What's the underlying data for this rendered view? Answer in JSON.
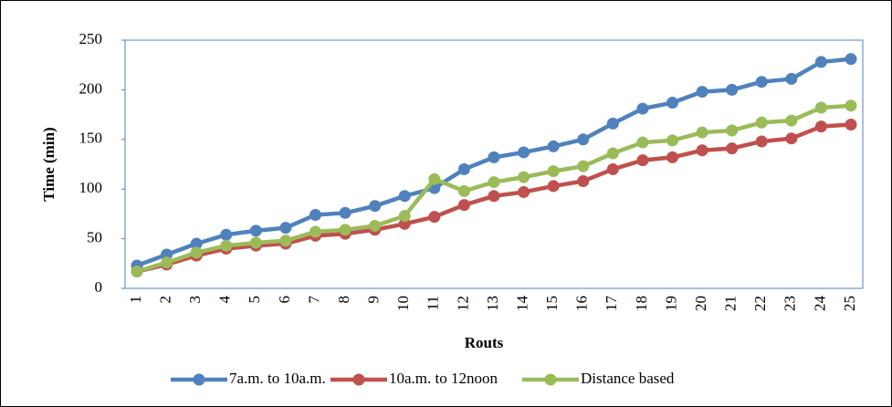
{
  "chart_data": {
    "type": "line",
    "x_label": "Routs",
    "y_label": "Time (min)",
    "categories": [
      "1",
      "2",
      "3",
      "4",
      "5",
      "6",
      "7",
      "8",
      "9",
      "10",
      "11",
      "12",
      "13",
      "14",
      "15",
      "16",
      "17",
      "18",
      "19",
      "20",
      "21",
      "22",
      "23",
      "24",
      "25"
    ],
    "series": [
      {
        "name": "7a.m. to 10a.m.",
        "color": "#4f81bd",
        "values": [
          23,
          34,
          45,
          54,
          58,
          61,
          74,
          76,
          83,
          93,
          101,
          120,
          132,
          137,
          143,
          150,
          166,
          181,
          187,
          198,
          200,
          208,
          211,
          228,
          231
        ]
      },
      {
        "name": "10a.m. to 12noon",
        "color": "#c0504d",
        "values": [
          17,
          24,
          33,
          40,
          43,
          45,
          53,
          55,
          59,
          65,
          72,
          84,
          93,
          97,
          103,
          108,
          120,
          129,
          132,
          139,
          141,
          148,
          151,
          163,
          165
        ]
      },
      {
        "name": "Distance based",
        "color": "#9bbb59",
        "values": [
          17,
          26,
          36,
          43,
          46,
          48,
          57,
          59,
          63,
          73,
          110,
          98,
          107,
          112,
          118,
          123,
          136,
          147,
          149,
          157,
          159,
          167,
          169,
          182,
          184
        ]
      }
    ],
    "ylim": [
      0,
      250
    ],
    "yticks": [
      0,
      50,
      100,
      150,
      200,
      250
    ],
    "legend": "bottom"
  }
}
